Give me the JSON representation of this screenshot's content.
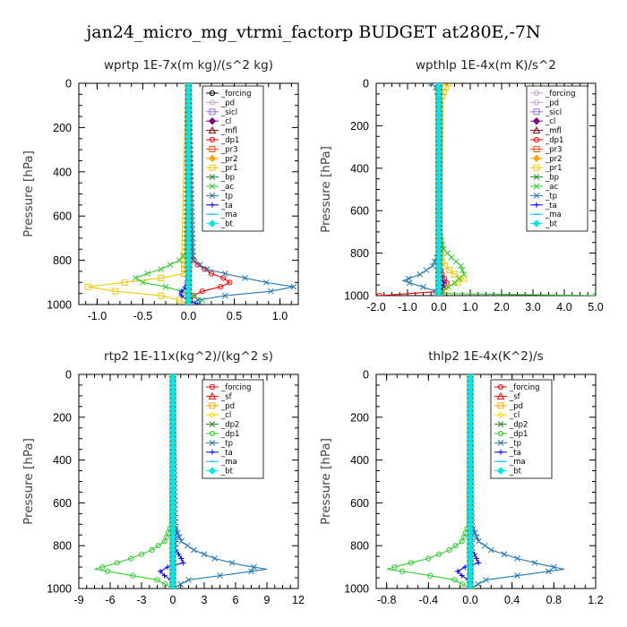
{
  "figure_title": "jan24_micro_mg_vtrmi_factorp  BUDGET at280E,-7N",
  "chart_data": [
    {
      "type": "line",
      "title": "wprtp   1E-7x(m kg)/(s^2 kg)",
      "ylabel": "Pressure [hPa]",
      "xlim": [
        -1.2,
        1.2
      ],
      "ylim": [
        1000,
        0
      ],
      "xticks": [
        -1.0,
        -0.5,
        0.0,
        0.5,
        1.0
      ],
      "xtick_labels": [
        "-1.0",
        "-0.5",
        "0.0",
        "0.5",
        "1.0"
      ],
      "yticks": [
        0,
        200,
        400,
        600,
        800,
        1000
      ],
      "ytick_labels": [
        "0",
        "200",
        "400",
        "600",
        "800",
        "1000"
      ],
      "legend": [
        "_forcing",
        "_pd",
        "_sicl",
        "_cl",
        "_mfl",
        "_dp1",
        "_pr3",
        "_pr2",
        "_pr1",
        "_bp",
        "_ac",
        "_tp",
        "_ta",
        "_ma",
        "_bt"
      ],
      "series": [
        {
          "name": "_forcing",
          "color": "#000000",
          "marker": "circle",
          "p": [
            0,
            500,
            1000
          ],
          "x": [
            0,
            0,
            0
          ]
        },
        {
          "name": "_pd",
          "color": "#c8a2c8",
          "marker": "circle",
          "p": [
            0,
            1000
          ],
          "x": [
            0,
            0
          ]
        },
        {
          "name": "_sicl",
          "color": "#9370db",
          "marker": "square",
          "p": [
            0,
            1000
          ],
          "x": [
            0,
            0
          ]
        },
        {
          "name": "_cl",
          "color": "#800080",
          "marker": "diamond",
          "p": [
            0,
            1000
          ],
          "x": [
            0,
            0
          ]
        },
        {
          "name": "_mfl",
          "color": "#8b0000",
          "marker": "triangle",
          "p": [
            0,
            1000
          ],
          "x": [
            0,
            0
          ]
        },
        {
          "name": "_dp1",
          "color": "#ff0000",
          "marker": "circle",
          "p": [
            0,
            780,
            820,
            860,
            880,
            900,
            920,
            940,
            960,
            980,
            1000
          ],
          "x": [
            0,
            0.02,
            0.1,
            0.25,
            0.38,
            0.45,
            0.35,
            0.15,
            0.05,
            0.02,
            0
          ]
        },
        {
          "name": "_pr3",
          "color": "#ff4500",
          "marker": "square",
          "p": [
            0,
            1000
          ],
          "x": [
            0,
            0
          ]
        },
        {
          "name": "_pr2",
          "color": "#ffa500",
          "marker": "diamond",
          "p": [
            0,
            1000
          ],
          "x": [
            0,
            0
          ]
        },
        {
          "name": "_pr1",
          "color": "#f0c800",
          "marker": "square",
          "p": [
            0,
            860,
            880,
            900,
            920,
            940,
            960,
            980,
            1000
          ],
          "x": [
            0,
            -0.05,
            -0.3,
            -0.7,
            -1.1,
            -0.8,
            -0.3,
            -0.1,
            0
          ]
        },
        {
          "name": "_bp",
          "color": "#1e8b22",
          "marker": "x",
          "p": [
            0,
            1000
          ],
          "x": [
            0,
            0
          ]
        },
        {
          "name": "_ac",
          "color": "#32cd32",
          "marker": "x",
          "p": [
            0,
            760,
            800,
            840,
            860,
            880,
            900,
            920,
            940,
            960,
            980,
            1000
          ],
          "x": [
            0,
            -0.02,
            -0.1,
            -0.3,
            -0.45,
            -0.58,
            -0.5,
            -0.25,
            -0.08,
            0.05,
            0.15,
            0.1
          ]
        },
        {
          "name": "_tp",
          "color": "#1f77b4",
          "marker": "x",
          "p": [
            0,
            800,
            840,
            870,
            900,
            920,
            940,
            960,
            980,
            1000
          ],
          "x": [
            0,
            0.05,
            0.2,
            0.5,
            0.85,
            1.15,
            0.9,
            0.4,
            0.1,
            0
          ]
        },
        {
          "name": "_ta",
          "color": "#0000ff",
          "marker": "plus",
          "p": [
            0,
            860,
            900,
            930,
            950,
            970,
            990,
            1000
          ],
          "x": [
            0,
            0,
            -0.02,
            -0.05,
            -0.1,
            -0.05,
            0.05,
            0.1
          ]
        },
        {
          "name": "_ma",
          "color": "#00bfff",
          "marker": "dash",
          "p": [
            0,
            1000
          ],
          "x": [
            0,
            0
          ]
        },
        {
          "name": "_bt",
          "color": "#00e5ee",
          "marker": "diamond",
          "p": [
            0,
            1000
          ],
          "x": [
            0,
            0
          ]
        }
      ]
    },
    {
      "type": "line",
      "title": "wpthlp   1E-4x(m K)/s^2",
      "ylabel": "Pressure [hPa]",
      "xlim": [
        -2.0,
        5.0
      ],
      "ylim": [
        1000,
        0
      ],
      "xticks": [
        -2.0,
        -1.0,
        0.0,
        1.0,
        2.0,
        3.0,
        4.0,
        5.0
      ],
      "xtick_labels": [
        "-2.0",
        "-1.0",
        "0.0",
        "1.0",
        "2.0",
        "3.0",
        "4.0",
        "5.0"
      ],
      "yticks": [
        0,
        200,
        400,
        600,
        800,
        1000
      ],
      "ytick_labels": [
        "0",
        "200",
        "400",
        "600",
        "800",
        "1000"
      ],
      "legend": [
        "_forcing",
        "_pd",
        "_sicl",
        "_cl",
        "_mfl",
        "_dp1",
        "_pr3",
        "_pr2",
        "_pr1",
        "_bp",
        "_ac",
        "_tp",
        "_ta",
        "_ma",
        "_bt"
      ],
      "series": [
        {
          "name": "_forcing",
          "color": "#c8a2c8",
          "marker": "circle",
          "p": [
            0,
            1000
          ],
          "x": [
            0,
            0
          ]
        },
        {
          "name": "_pd",
          "color": "#c8a2c8",
          "marker": "circle",
          "p": [
            0,
            1000
          ],
          "x": [
            0,
            0
          ]
        },
        {
          "name": "_sicl",
          "color": "#9370db",
          "marker": "square",
          "p": [
            0,
            1000
          ],
          "x": [
            0,
            0
          ]
        },
        {
          "name": "_cl",
          "color": "#800080",
          "marker": "diamond",
          "p": [
            0,
            1000
          ],
          "x": [
            0,
            0
          ]
        },
        {
          "name": "_mfl",
          "color": "#8b0000",
          "marker": "triangle",
          "p": [
            0,
            1000
          ],
          "x": [
            0,
            0
          ]
        },
        {
          "name": "_dp1",
          "color": "#ff0000",
          "marker": "circle",
          "p": [
            0,
            860,
            900,
            940,
            960,
            980,
            1000
          ],
          "x": [
            0,
            0.02,
            0.1,
            0.25,
            0.15,
            0.05,
            -1.9
          ]
        },
        {
          "name": "_pr3",
          "color": "#ff4500",
          "marker": "square",
          "p": [
            0,
            1000
          ],
          "x": [
            0,
            0
          ]
        },
        {
          "name": "_pr2",
          "color": "#ffa500",
          "marker": "diamond",
          "p": [
            0,
            1000
          ],
          "x": [
            0,
            0
          ]
        },
        {
          "name": "_pr1",
          "color": "#f0c800",
          "marker": "square",
          "p": [
            0,
            40,
            80,
            700,
            850,
            900,
            920,
            940,
            960,
            1000
          ],
          "x": [
            0.3,
            0.15,
            0.05,
            0,
            0.1,
            0.5,
            0.8,
            0.6,
            0.2,
            0
          ]
        },
        {
          "name": "_bp",
          "color": "#1e8b22",
          "marker": "x",
          "p": [
            0,
            1000
          ],
          "x": [
            0,
            0
          ]
        },
        {
          "name": "_ac",
          "color": "#32cd32",
          "marker": "x",
          "p": [
            0,
            700,
            780,
            820,
            860,
            900,
            940,
            970,
            990,
            1000
          ],
          "x": [
            0,
            0.02,
            0.15,
            0.4,
            0.7,
            0.8,
            0.5,
            0.2,
            0.05,
            5.0
          ]
        },
        {
          "name": "_tp",
          "color": "#1f77b4",
          "marker": "x",
          "p": [
            0,
            20,
            60,
            800,
            860,
            900,
            930,
            960,
            980,
            1000
          ],
          "x": [
            -0.25,
            -0.1,
            0,
            0,
            -0.2,
            -0.6,
            -1.15,
            -0.5,
            -0.1,
            0
          ]
        },
        {
          "name": "_ta",
          "color": "#0000ff",
          "marker": "plus",
          "p": [
            0,
            900,
            940,
            970,
            1000
          ],
          "x": [
            0,
            0.05,
            0.15,
            0.1,
            0
          ]
        },
        {
          "name": "_ma",
          "color": "#00bfff",
          "marker": "dash",
          "p": [
            0,
            1000
          ],
          "x": [
            0,
            0
          ]
        },
        {
          "name": "_bt",
          "color": "#00e5ee",
          "marker": "diamond",
          "p": [
            0,
            1000
          ],
          "x": [
            0,
            0
          ]
        }
      ]
    },
    {
      "type": "line",
      "title": "rtp2   1E-11x(kg^2)/(kg^2 s)",
      "ylabel": "Pressure [hPa]",
      "xlim": [
        -9,
        12
      ],
      "ylim": [
        1000,
        0
      ],
      "xticks": [
        -9,
        -6,
        -3,
        0,
        3,
        6,
        9,
        12
      ],
      "xtick_labels": [
        "-9",
        "-6",
        "-3",
        "0",
        "3",
        "6",
        "9",
        "12"
      ],
      "yticks": [
        0,
        200,
        400,
        600,
        800,
        1000
      ],
      "ytick_labels": [
        "0",
        "200",
        "400",
        "600",
        "800",
        "1000"
      ],
      "legend": [
        "_forcing",
        "_sf",
        "_pd",
        "_cl",
        "_dp2",
        "_dp1",
        "_tp",
        "_ta",
        "_ma",
        "_bt"
      ],
      "series": [
        {
          "name": "_forcing",
          "color": "#ff0000",
          "marker": "circle",
          "p": [
            0,
            500,
            1000
          ],
          "x": [
            0,
            0,
            0
          ]
        },
        {
          "name": "_sf",
          "color": "#ff0000",
          "marker": "triangle",
          "p": [
            0,
            1000
          ],
          "x": [
            0,
            0
          ]
        },
        {
          "name": "_pd",
          "color": "#ffa500",
          "marker": "square",
          "p": [
            0,
            1000
          ],
          "x": [
            0,
            0
          ]
        },
        {
          "name": "_cl",
          "color": "#ffd700",
          "marker": "circle",
          "p": [
            0,
            1000
          ],
          "x": [
            0,
            0
          ]
        },
        {
          "name": "_dp2",
          "color": "#1e8b22",
          "marker": "x",
          "p": [
            0,
            1000
          ],
          "x": [
            0,
            0
          ]
        },
        {
          "name": "_dp1",
          "color": "#32cd32",
          "marker": "circle",
          "p": [
            0,
            700,
            780,
            820,
            860,
            890,
            910,
            930,
            960,
            1000
          ],
          "x": [
            0,
            -0.1,
            -0.8,
            -2.0,
            -4.0,
            -6.0,
            -7.5,
            -5.0,
            -1.5,
            0
          ]
        },
        {
          "name": "_tp",
          "color": "#1f77b4",
          "marker": "x",
          "p": [
            0,
            700,
            780,
            820,
            860,
            890,
            910,
            930,
            960,
            1000
          ],
          "x": [
            0,
            0.1,
            0.8,
            2.0,
            4.0,
            6.5,
            9.0,
            6.0,
            1.5,
            0
          ]
        },
        {
          "name": "_ta",
          "color": "#0000ff",
          "marker": "plus",
          "p": [
            0,
            820,
            860,
            880,
            900,
            920,
            940,
            960,
            1000
          ],
          "x": [
            0,
            0.3,
            0.8,
            1.0,
            -0.5,
            -1.2,
            -0.8,
            -0.2,
            0
          ]
        },
        {
          "name": "_ma",
          "color": "#00bfff",
          "marker": "dash",
          "p": [
            0,
            1000
          ],
          "x": [
            0,
            0
          ]
        },
        {
          "name": "_bt",
          "color": "#00e5ee",
          "marker": "diamond",
          "p": [
            0,
            1000
          ],
          "x": [
            0,
            0
          ]
        }
      ]
    },
    {
      "type": "line",
      "title": "thlp2   1E-4x(K^2)/s",
      "ylabel": "Pressure [hPa]",
      "xlim": [
        -0.9,
        1.2
      ],
      "ylim": [
        1000,
        0
      ],
      "xticks": [
        -0.8,
        -0.4,
        0.0,
        0.4,
        0.8,
        1.2
      ],
      "xtick_labels": [
        "-0.8",
        "-0.4",
        "0.0",
        "0.4",
        "0.8",
        "1.2"
      ],
      "yticks": [
        0,
        200,
        400,
        600,
        800,
        1000
      ],
      "ytick_labels": [
        "0",
        "200",
        "400",
        "600",
        "800",
        "1000"
      ],
      "legend": [
        "_forcing",
        "_sf",
        "_pd",
        "_cl",
        "_dp2",
        "_dp1",
        "_tp",
        "_ta",
        "_ma",
        "_bt"
      ],
      "series": [
        {
          "name": "_forcing",
          "color": "#ff0000",
          "marker": "circle",
          "p": [
            0,
            500,
            1000
          ],
          "x": [
            0,
            0,
            0
          ]
        },
        {
          "name": "_sf",
          "color": "#ff0000",
          "marker": "triangle",
          "p": [
            0,
            1000
          ],
          "x": [
            0,
            0
          ]
        },
        {
          "name": "_pd",
          "color": "#ffa500",
          "marker": "square",
          "p": [
            0,
            1000
          ],
          "x": [
            0,
            0
          ]
        },
        {
          "name": "_cl",
          "color": "#ffd700",
          "marker": "circle",
          "p": [
            0,
            1000
          ],
          "x": [
            0,
            0
          ]
        },
        {
          "name": "_dp2",
          "color": "#1e8b22",
          "marker": "x",
          "p": [
            0,
            1000
          ],
          "x": [
            0,
            0
          ]
        },
        {
          "name": "_dp1",
          "color": "#32cd32",
          "marker": "circle",
          "p": [
            0,
            700,
            780,
            820,
            860,
            890,
            910,
            930,
            960,
            1000
          ],
          "x": [
            0,
            -0.01,
            -0.08,
            -0.2,
            -0.4,
            -0.65,
            -0.8,
            -0.5,
            -0.15,
            0
          ]
        },
        {
          "name": "_tp",
          "color": "#1f77b4",
          "marker": "x",
          "p": [
            0,
            700,
            780,
            820,
            860,
            890,
            910,
            930,
            960,
            1000
          ],
          "x": [
            0,
            0.01,
            0.08,
            0.2,
            0.45,
            0.7,
            0.9,
            0.6,
            0.15,
            0
          ]
        },
        {
          "name": "_ta",
          "color": "#0000ff",
          "marker": "plus",
          "p": [
            0,
            820,
            860,
            880,
            900,
            920,
            940,
            960,
            1000
          ],
          "x": [
            0,
            0.02,
            0.06,
            0.08,
            -0.05,
            -0.12,
            -0.08,
            -0.02,
            0
          ]
        },
        {
          "name": "_ma",
          "color": "#00bfff",
          "marker": "dash",
          "p": [
            0,
            1000
          ],
          "x": [
            0,
            0
          ]
        },
        {
          "name": "_bt",
          "color": "#00e5ee",
          "marker": "diamond",
          "p": [
            0,
            1000
          ],
          "x": [
            0,
            0
          ]
        }
      ]
    }
  ]
}
